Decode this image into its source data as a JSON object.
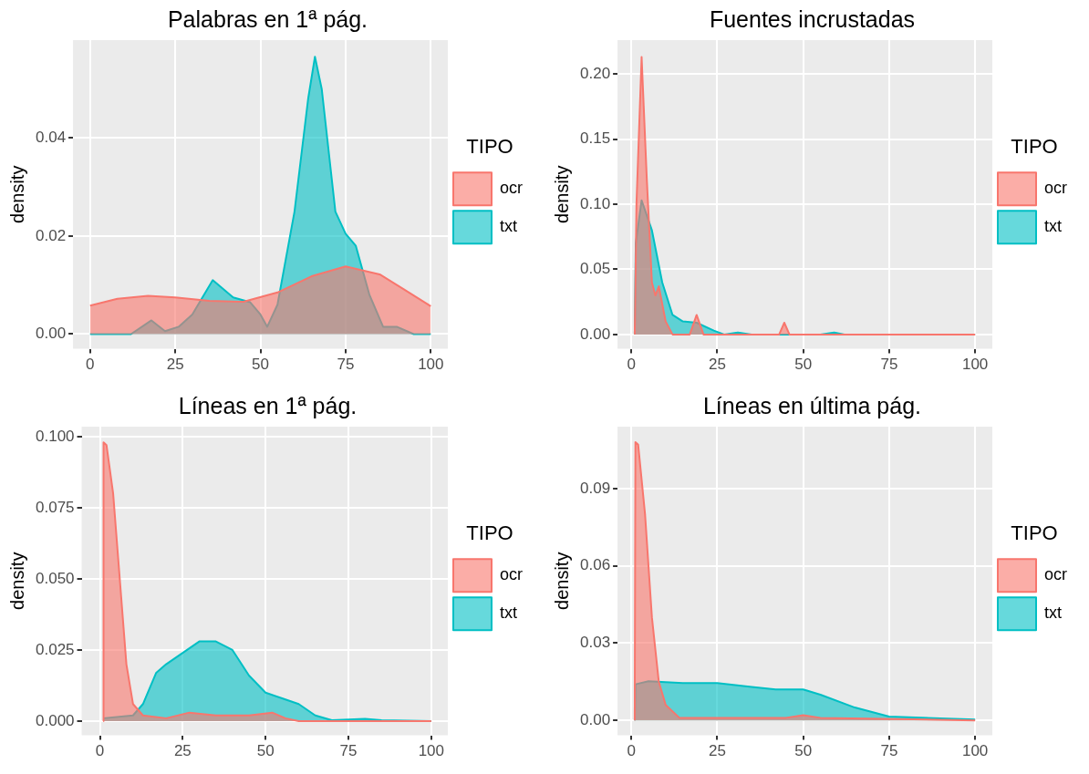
{
  "chart_data": [
    {
      "type": "area",
      "title": "Palabras en 1ª pág.",
      "ylabel": "density",
      "legend_title": "TIPO",
      "legend": "right",
      "grid": true,
      "xlim": [
        -5,
        105
      ],
      "ylim": [
        -0.003,
        0.06
      ],
      "xticks": [
        0,
        25,
        50,
        75,
        100
      ],
      "yticks": [
        {
          "value": 0,
          "label": "0.00"
        },
        {
          "value": 0.02,
          "label": "0.02"
        },
        {
          "value": 0.04,
          "label": "0.04"
        }
      ],
      "series": [
        {
          "name": "ocr",
          "color": "#f8766d",
          "x": [
            0,
            8,
            17,
            25,
            35,
            45,
            55,
            65,
            75,
            85,
            92,
            100
          ],
          "values": [
            0.0058,
            0.0072,
            0.0078,
            0.0075,
            0.0068,
            0.0066,
            0.0085,
            0.0118,
            0.0138,
            0.0122,
            0.0092,
            0.0057
          ]
        },
        {
          "name": "txt",
          "color": "#00bfc4",
          "x": [
            0,
            12,
            18,
            22,
            26,
            30,
            36,
            42,
            47,
            50,
            52,
            55,
            60,
            64,
            66,
            68,
            72,
            75,
            78,
            82,
            86,
            90,
            95,
            100
          ],
          "values": [
            0,
            0,
            0.0028,
            0.0006,
            0.0015,
            0.004,
            0.011,
            0.0075,
            0.0065,
            0.004,
            0.0015,
            0.006,
            0.025,
            0.048,
            0.0566,
            0.05,
            0.025,
            0.0205,
            0.018,
            0.008,
            0.0015,
            0.0015,
            0,
            0
          ]
        }
      ]
    },
    {
      "type": "area",
      "title": "Fuentes incrustadas",
      "ylabel": "density",
      "legend_title": "TIPO",
      "legend": "right",
      "grid": true,
      "xlim": [
        -4,
        105
      ],
      "ylim": [
        -0.011,
        0.226
      ],
      "xticks": [
        0,
        25,
        50,
        75,
        100
      ],
      "yticks": [
        {
          "value": 0,
          "label": "0.00"
        },
        {
          "value": 0.05,
          "label": "0.05"
        },
        {
          "value": 0.1,
          "label": "0.10"
        },
        {
          "value": 0.15,
          "label": "0.15"
        },
        {
          "value": 0.2,
          "label": "0.20"
        }
      ],
      "series": [
        {
          "name": "ocr",
          "color": "#f8766d",
          "x": [
            1,
            1.5,
            3,
            4.5,
            6,
            7,
            8,
            10,
            12,
            17,
            19,
            21,
            43,
            44.5,
            46,
            100
          ],
          "values": [
            0,
            0.1,
            0.213,
            0.12,
            0.04,
            0.03,
            0.037,
            0.01,
            0,
            0,
            0.015,
            0,
            0,
            0.009,
            0,
            0
          ]
        },
        {
          "name": "txt",
          "color": "#00bfc4",
          "x": [
            1,
            1.3,
            3,
            6,
            9,
            12,
            15,
            19,
            24,
            27,
            31,
            35,
            55,
            59,
            62,
            100
          ],
          "values": [
            0,
            0.07,
            0.103,
            0.08,
            0.04,
            0.015,
            0.01,
            0.009,
            0.003,
            0,
            0.0015,
            0,
            0,
            0.0015,
            0,
            0
          ]
        }
      ]
    },
    {
      "type": "area",
      "title": "Líneas en 1ª pág.",
      "ylabel": "density",
      "legend_title": "TIPO",
      "legend": "right",
      "grid": true,
      "xlim": [
        -5.5,
        105
      ],
      "ylim": [
        -0.005,
        0.1035
      ],
      "xticks": [
        0,
        25,
        50,
        75,
        100
      ],
      "yticks": [
        {
          "value": 0,
          "label": "0.000"
        },
        {
          "value": 0.025,
          "label": "0.025"
        },
        {
          "value": 0.05,
          "label": "0.050"
        },
        {
          "value": 0.075,
          "label": "0.075"
        },
        {
          "value": 0.1,
          "label": "0.100"
        }
      ],
      "series": [
        {
          "name": "ocr",
          "color": "#f8766d",
          "x": [
            1,
            1.1,
            2,
            4,
            6,
            8,
            10,
            13,
            20,
            27,
            35,
            45,
            52,
            56,
            60,
            100
          ],
          "values": [
            0,
            0.098,
            0.097,
            0.08,
            0.05,
            0.02,
            0.006,
            0.002,
            0.001,
            0.003,
            0.002,
            0.002,
            0.003,
            0.001,
            0,
            0
          ]
        },
        {
          "name": "txt",
          "color": "#00bfc4",
          "x": [
            1,
            10,
            13,
            17,
            20,
            25,
            30,
            35,
            40,
            45,
            50,
            55,
            60,
            65,
            70,
            80,
            85,
            100
          ],
          "values": [
            0.001,
            0.002,
            0.006,
            0.017,
            0.02,
            0.024,
            0.028,
            0.028,
            0.025,
            0.016,
            0.01,
            0.008,
            0.006,
            0.002,
            0.0003,
            0.0008,
            0.0003,
            0
          ]
        }
      ]
    },
    {
      "type": "area",
      "title": "Líneas en última pág.",
      "ylabel": "density",
      "legend_title": "TIPO",
      "legend": "right",
      "grid": true,
      "xlim": [
        -4,
        105
      ],
      "ylim": [
        -0.0058,
        0.114
      ],
      "xticks": [
        0,
        25,
        50,
        75,
        100
      ],
      "yticks": [
        {
          "value": 0,
          "label": "0.00"
        },
        {
          "value": 0.03,
          "label": "0.03"
        },
        {
          "value": 0.06,
          "label": "0.06"
        },
        {
          "value": 0.09,
          "label": "0.09"
        }
      ],
      "series": [
        {
          "name": "ocr",
          "color": "#f8766d",
          "x": [
            1,
            1.2,
            2,
            4,
            6,
            8,
            10,
            14,
            30,
            45,
            50,
            55,
            100
          ],
          "values": [
            0,
            0.108,
            0.107,
            0.08,
            0.04,
            0.015,
            0.006,
            0.001,
            0.001,
            0.001,
            0.002,
            0.001,
            0
          ]
        },
        {
          "name": "txt",
          "color": "#00bfc4",
          "x": [
            1,
            1.2,
            5,
            15,
            25,
            35,
            42,
            50,
            55,
            65,
            75,
            100
          ],
          "values": [
            0,
            0.014,
            0.0152,
            0.0145,
            0.0145,
            0.013,
            0.012,
            0.012,
            0.01,
            0.005,
            0.0015,
            0.0003
          ]
        }
      ]
    }
  ]
}
